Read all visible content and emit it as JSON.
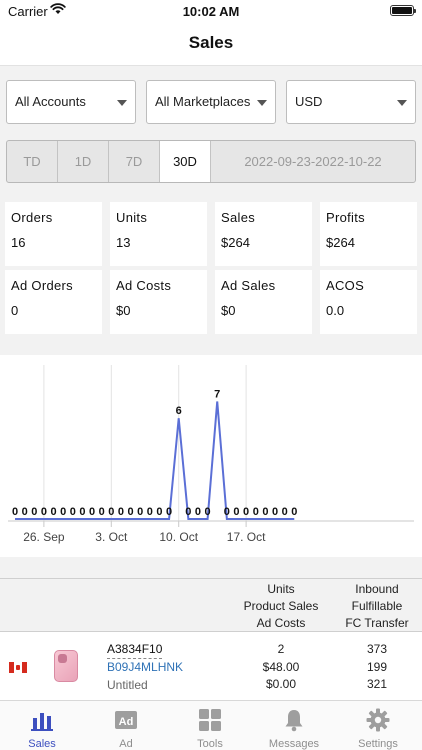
{
  "status": {
    "carrier": "Carrier",
    "time": "10:02 AM"
  },
  "nav": {
    "title": "Sales"
  },
  "filters": {
    "accounts": "All Accounts",
    "marketplaces": "All Marketplaces",
    "currency": "USD"
  },
  "range": {
    "tabs": [
      "TD",
      "1D",
      "7D",
      "30D"
    ],
    "active": "30D",
    "date_range": "2022-09-23-2022-10-22"
  },
  "stats": [
    {
      "label": "Orders",
      "value": "16"
    },
    {
      "label": "Units",
      "value": "13"
    },
    {
      "label": "Sales",
      "value": "$264"
    },
    {
      "label": "Profits",
      "value": "$264"
    },
    {
      "label": "Ad Orders",
      "value": "0"
    },
    {
      "label": "Ad Costs",
      "value": "$0"
    },
    {
      "label": "Ad Sales",
      "value": "$0"
    },
    {
      "label": "ACOS",
      "value": "0.0"
    }
  ],
  "chart_data": {
    "type": "line",
    "x": [
      "Sep 23",
      "Sep 24",
      "Sep 25",
      "Sep 26",
      "Sep 27",
      "Sep 28",
      "Sep 29",
      "Sep 30",
      "Oct 1",
      "Oct 2",
      "Oct 3",
      "Oct 4",
      "Oct 5",
      "Oct 6",
      "Oct 7",
      "Oct 8",
      "Oct 9",
      "Oct 10",
      "Oct 11",
      "Oct 12",
      "Oct 13",
      "Oct 14",
      "Oct 15",
      "Oct 16",
      "Oct 17",
      "Oct 18",
      "Oct 19",
      "Oct 20",
      "Oct 21",
      "Oct 22"
    ],
    "values": [
      0,
      0,
      0,
      0,
      0,
      0,
      0,
      0,
      0,
      0,
      0,
      0,
      0,
      0,
      0,
      0,
      0,
      6,
      0,
      0,
      0,
      7,
      0,
      0,
      0,
      0,
      0,
      0,
      0,
      0
    ],
    "x_tick_labels": [
      "26. Sep",
      "3. Oct",
      "10. Oct",
      "17. Oct"
    ],
    "ylim": [
      0,
      8
    ],
    "grid": "vertical",
    "line_color": "#5b6fd6"
  },
  "table": {
    "headers": {
      "col1": [
        "Units",
        "Product Sales",
        "Ad Costs"
      ],
      "col2": [
        "Inbound",
        "Fulfillable",
        "FC Transfer"
      ]
    },
    "rows": [
      {
        "sku": "A3834F10",
        "asin": "B09J4MLHNK",
        "title": "Untitled",
        "units": "2",
        "product_sales": "$48.00",
        "ad_costs": "$0.00",
        "inbound": "373",
        "fulfillable": "199",
        "fc_transfer": "321"
      }
    ]
  },
  "tabs": [
    {
      "label": "Sales",
      "icon": "bar-chart-icon"
    },
    {
      "label": "Ad",
      "icon": "ad-icon"
    },
    {
      "label": "Tools",
      "icon": "grid-icon"
    },
    {
      "label": "Messages",
      "icon": "bell-icon"
    },
    {
      "label": "Settings",
      "icon": "gear-icon"
    }
  ],
  "colors": {
    "accent": "#3d4fbf",
    "link": "#2f72b6"
  }
}
